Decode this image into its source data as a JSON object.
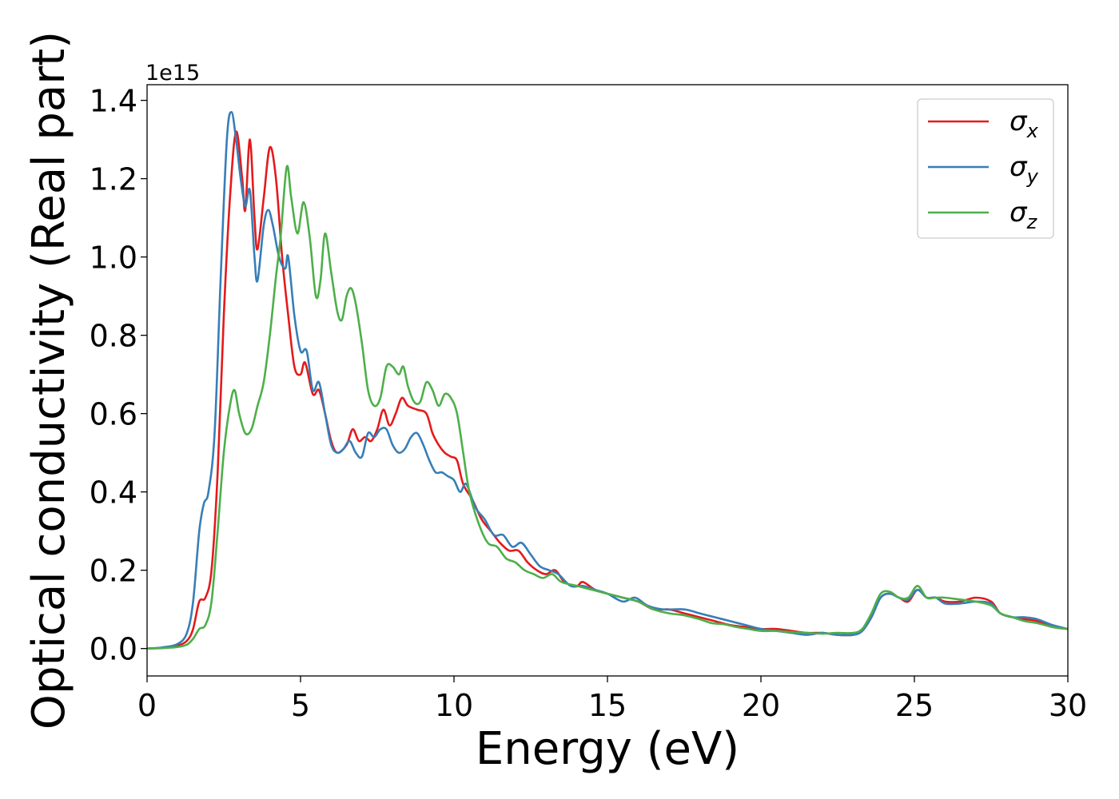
{
  "chart_data": {
    "type": "line",
    "xlabel": "Energy (eV)",
    "ylabel": "Optical conductivity (Real part)",
    "y_offset_text": "1e15",
    "xlim": [
      0,
      30
    ],
    "ylim": [
      -0.07,
      1.44
    ],
    "x_ticks": [
      0,
      5,
      10,
      15,
      20,
      25,
      30
    ],
    "x_tick_labels": [
      "0",
      "5",
      "10",
      "15",
      "20",
      "25",
      "30"
    ],
    "y_ticks": [
      0.0,
      0.2,
      0.4,
      0.6,
      0.8,
      1.0,
      1.2,
      1.4
    ],
    "y_tick_labels": [
      "0.0",
      "0.2",
      "0.4",
      "0.6",
      "0.8",
      "1.0",
      "1.2",
      "1.4"
    ],
    "grid": false,
    "legend_position": "top-right",
    "series": [
      {
        "name": "σx",
        "legend_symbol": "σ",
        "legend_subscript": "x",
        "color": "#e41a1c",
        "points": [
          [
            0,
            0
          ],
          [
            0.5,
            0.002
          ],
          [
            1.0,
            0.008
          ],
          [
            1.3,
            0.02
          ],
          [
            1.5,
            0.05
          ],
          [
            1.7,
            0.12
          ],
          [
            1.9,
            0.13
          ],
          [
            2.1,
            0.2
          ],
          [
            2.3,
            0.45
          ],
          [
            2.5,
            0.85
          ],
          [
            2.7,
            1.15
          ],
          [
            2.9,
            1.32
          ],
          [
            3.1,
            1.2
          ],
          [
            3.2,
            1.12
          ],
          [
            3.35,
            1.3
          ],
          [
            3.5,
            1.1
          ],
          [
            3.6,
            1.02
          ],
          [
            3.8,
            1.15
          ],
          [
            4.0,
            1.28
          ],
          [
            4.2,
            1.2
          ],
          [
            4.4,
            1.0
          ],
          [
            4.6,
            0.85
          ],
          [
            4.8,
            0.72
          ],
          [
            5.0,
            0.7
          ],
          [
            5.15,
            0.73
          ],
          [
            5.4,
            0.65
          ],
          [
            5.6,
            0.66
          ],
          [
            5.8,
            0.6
          ],
          [
            6.0,
            0.53
          ],
          [
            6.2,
            0.5
          ],
          [
            6.5,
            0.52
          ],
          [
            6.7,
            0.56
          ],
          [
            6.9,
            0.53
          ],
          [
            7.1,
            0.54
          ],
          [
            7.3,
            0.53
          ],
          [
            7.5,
            0.56
          ],
          [
            7.7,
            0.61
          ],
          [
            7.9,
            0.57
          ],
          [
            8.1,
            0.6
          ],
          [
            8.3,
            0.64
          ],
          [
            8.5,
            0.62
          ],
          [
            8.8,
            0.61
          ],
          [
            9.1,
            0.6
          ],
          [
            9.3,
            0.55
          ],
          [
            9.5,
            0.52
          ],
          [
            9.7,
            0.5
          ],
          [
            9.9,
            0.49
          ],
          [
            10.1,
            0.48
          ],
          [
            10.3,
            0.42
          ],
          [
            10.6,
            0.38
          ],
          [
            10.9,
            0.33
          ],
          [
            11.2,
            0.3
          ],
          [
            11.5,
            0.27
          ],
          [
            11.8,
            0.25
          ],
          [
            12.1,
            0.25
          ],
          [
            12.4,
            0.22
          ],
          [
            12.7,
            0.2
          ],
          [
            13.0,
            0.19
          ],
          [
            13.3,
            0.2
          ],
          [
            13.6,
            0.17
          ],
          [
            14.0,
            0.16
          ],
          [
            14.2,
            0.17
          ],
          [
            14.6,
            0.15
          ],
          [
            15.0,
            0.14
          ],
          [
            15.5,
            0.13
          ],
          [
            16.0,
            0.12
          ],
          [
            16.5,
            0.1
          ],
          [
            17.0,
            0.1
          ],
          [
            17.5,
            0.09
          ],
          [
            18.0,
            0.08
          ],
          [
            18.5,
            0.07
          ],
          [
            19.0,
            0.06
          ],
          [
            19.5,
            0.055
          ],
          [
            20.0,
            0.05
          ],
          [
            20.5,
            0.05
          ],
          [
            21.0,
            0.045
          ],
          [
            21.5,
            0.04
          ],
          [
            22.0,
            0.04
          ],
          [
            22.5,
            0.035
          ],
          [
            23.0,
            0.035
          ],
          [
            23.3,
            0.045
          ],
          [
            23.6,
            0.08
          ],
          [
            23.9,
            0.13
          ],
          [
            24.2,
            0.14
          ],
          [
            24.5,
            0.13
          ],
          [
            24.8,
            0.12
          ],
          [
            25.1,
            0.15
          ],
          [
            25.4,
            0.13
          ],
          [
            25.7,
            0.13
          ],
          [
            26.0,
            0.12
          ],
          [
            26.5,
            0.12
          ],
          [
            27.0,
            0.13
          ],
          [
            27.5,
            0.12
          ],
          [
            27.8,
            0.09
          ],
          [
            28.2,
            0.08
          ],
          [
            28.6,
            0.075
          ],
          [
            29.0,
            0.07
          ],
          [
            29.5,
            0.055
          ],
          [
            30.0,
            0.05
          ]
        ]
      },
      {
        "name": "σy",
        "legend_symbol": "σ",
        "legend_subscript": "y",
        "color": "#377eb8",
        "points": [
          [
            0,
            0
          ],
          [
            0.5,
            0.003
          ],
          [
            1.0,
            0.012
          ],
          [
            1.3,
            0.04
          ],
          [
            1.5,
            0.12
          ],
          [
            1.7,
            0.3
          ],
          [
            1.85,
            0.37
          ],
          [
            2.0,
            0.4
          ],
          [
            2.2,
            0.55
          ],
          [
            2.4,
            0.95
          ],
          [
            2.6,
            1.3
          ],
          [
            2.75,
            1.37
          ],
          [
            2.9,
            1.3
          ],
          [
            3.05,
            1.2
          ],
          [
            3.2,
            1.13
          ],
          [
            3.35,
            1.17
          ],
          [
            3.5,
            1.0
          ],
          [
            3.6,
            0.94
          ],
          [
            3.8,
            1.08
          ],
          [
            3.95,
            1.12
          ],
          [
            4.1,
            1.08
          ],
          [
            4.3,
            1.0
          ],
          [
            4.5,
            0.97
          ],
          [
            4.6,
            1.0
          ],
          [
            4.8,
            0.85
          ],
          [
            5.0,
            0.76
          ],
          [
            5.2,
            0.76
          ],
          [
            5.4,
            0.66
          ],
          [
            5.6,
            0.68
          ],
          [
            5.8,
            0.6
          ],
          [
            6.0,
            0.52
          ],
          [
            6.2,
            0.5
          ],
          [
            6.4,
            0.51
          ],
          [
            6.6,
            0.53
          ],
          [
            6.8,
            0.5
          ],
          [
            7.0,
            0.49
          ],
          [
            7.2,
            0.55
          ],
          [
            7.4,
            0.54
          ],
          [
            7.6,
            0.56
          ],
          [
            7.8,
            0.56
          ],
          [
            8.0,
            0.52
          ],
          [
            8.2,
            0.5
          ],
          [
            8.4,
            0.51
          ],
          [
            8.6,
            0.54
          ],
          [
            8.8,
            0.55
          ],
          [
            9.0,
            0.52
          ],
          [
            9.2,
            0.48
          ],
          [
            9.4,
            0.45
          ],
          [
            9.6,
            0.45
          ],
          [
            9.8,
            0.44
          ],
          [
            10.0,
            0.43
          ],
          [
            10.2,
            0.4
          ],
          [
            10.4,
            0.42
          ],
          [
            10.7,
            0.36
          ],
          [
            11.0,
            0.33
          ],
          [
            11.3,
            0.29
          ],
          [
            11.6,
            0.29
          ],
          [
            11.9,
            0.26
          ],
          [
            12.2,
            0.27
          ],
          [
            12.5,
            0.24
          ],
          [
            12.8,
            0.21
          ],
          [
            13.1,
            0.2
          ],
          [
            13.4,
            0.19
          ],
          [
            13.8,
            0.16
          ],
          [
            14.2,
            0.16
          ],
          [
            14.6,
            0.15
          ],
          [
            15.0,
            0.14
          ],
          [
            15.5,
            0.12
          ],
          [
            15.9,
            0.13
          ],
          [
            16.3,
            0.11
          ],
          [
            16.8,
            0.1
          ],
          [
            17.5,
            0.1
          ],
          [
            18.0,
            0.09
          ],
          [
            18.5,
            0.08
          ],
          [
            19.0,
            0.07
          ],
          [
            19.5,
            0.06
          ],
          [
            20.0,
            0.05
          ],
          [
            20.5,
            0.045
          ],
          [
            21.0,
            0.04
          ],
          [
            21.5,
            0.035
          ],
          [
            22.0,
            0.04
          ],
          [
            22.5,
            0.035
          ],
          [
            23.0,
            0.035
          ],
          [
            23.3,
            0.045
          ],
          [
            23.6,
            0.08
          ],
          [
            23.9,
            0.13
          ],
          [
            24.2,
            0.14
          ],
          [
            24.5,
            0.13
          ],
          [
            24.8,
            0.125
          ],
          [
            25.1,
            0.15
          ],
          [
            25.4,
            0.13
          ],
          [
            25.7,
            0.13
          ],
          [
            26.0,
            0.115
          ],
          [
            26.5,
            0.115
          ],
          [
            27.0,
            0.12
          ],
          [
            27.5,
            0.115
          ],
          [
            27.8,
            0.09
          ],
          [
            28.2,
            0.08
          ],
          [
            28.6,
            0.08
          ],
          [
            29.0,
            0.075
          ],
          [
            29.5,
            0.06
          ],
          [
            30.0,
            0.05
          ]
        ]
      },
      {
        "name": "σz",
        "legend_symbol": "σ",
        "legend_subscript": "z",
        "color": "#4daf4a",
        "points": [
          [
            0,
            0
          ],
          [
            0.5,
            0.001
          ],
          [
            1.0,
            0.004
          ],
          [
            1.3,
            0.01
          ],
          [
            1.5,
            0.025
          ],
          [
            1.7,
            0.05
          ],
          [
            1.9,
            0.06
          ],
          [
            2.1,
            0.12
          ],
          [
            2.3,
            0.3
          ],
          [
            2.5,
            0.5
          ],
          [
            2.7,
            0.62
          ],
          [
            2.85,
            0.66
          ],
          [
            3.0,
            0.6
          ],
          [
            3.2,
            0.55
          ],
          [
            3.4,
            0.56
          ],
          [
            3.6,
            0.62
          ],
          [
            3.8,
            0.68
          ],
          [
            4.0,
            0.8
          ],
          [
            4.2,
            0.95
          ],
          [
            4.35,
            1.05
          ],
          [
            4.55,
            1.23
          ],
          [
            4.7,
            1.15
          ],
          [
            4.9,
            1.06
          ],
          [
            5.1,
            1.14
          ],
          [
            5.3,
            1.05
          ],
          [
            5.5,
            0.9
          ],
          [
            5.65,
            0.94
          ],
          [
            5.8,
            1.06
          ],
          [
            6.0,
            0.96
          ],
          [
            6.2,
            0.86
          ],
          [
            6.35,
            0.84
          ],
          [
            6.5,
            0.9
          ],
          [
            6.65,
            0.92
          ],
          [
            6.8,
            0.88
          ],
          [
            7.0,
            0.78
          ],
          [
            7.2,
            0.66
          ],
          [
            7.4,
            0.62
          ],
          [
            7.6,
            0.64
          ],
          [
            7.8,
            0.72
          ],
          [
            8.0,
            0.72
          ],
          [
            8.2,
            0.7
          ],
          [
            8.35,
            0.72
          ],
          [
            8.5,
            0.67
          ],
          [
            8.7,
            0.63
          ],
          [
            8.9,
            0.63
          ],
          [
            9.1,
            0.68
          ],
          [
            9.3,
            0.66
          ],
          [
            9.5,
            0.62
          ],
          [
            9.7,
            0.65
          ],
          [
            9.9,
            0.64
          ],
          [
            10.1,
            0.6
          ],
          [
            10.3,
            0.5
          ],
          [
            10.5,
            0.4
          ],
          [
            10.8,
            0.32
          ],
          [
            11.1,
            0.27
          ],
          [
            11.4,
            0.26
          ],
          [
            11.7,
            0.23
          ],
          [
            12.0,
            0.22
          ],
          [
            12.3,
            0.2
          ],
          [
            12.6,
            0.19
          ],
          [
            12.9,
            0.18
          ],
          [
            13.2,
            0.19
          ],
          [
            13.5,
            0.17
          ],
          [
            14.0,
            0.16
          ],
          [
            14.5,
            0.15
          ],
          [
            15.0,
            0.14
          ],
          [
            15.5,
            0.13
          ],
          [
            16.0,
            0.12
          ],
          [
            16.5,
            0.1
          ],
          [
            17.0,
            0.09
          ],
          [
            17.5,
            0.085
          ],
          [
            18.0,
            0.075
          ],
          [
            18.4,
            0.065
          ],
          [
            18.8,
            0.062
          ],
          [
            19.2,
            0.055
          ],
          [
            19.6,
            0.05
          ],
          [
            20.0,
            0.045
          ],
          [
            20.5,
            0.045
          ],
          [
            21.0,
            0.042
          ],
          [
            21.5,
            0.04
          ],
          [
            22.0,
            0.038
          ],
          [
            22.5,
            0.04
          ],
          [
            23.0,
            0.04
          ],
          [
            23.3,
            0.05
          ],
          [
            23.6,
            0.09
          ],
          [
            23.9,
            0.14
          ],
          [
            24.2,
            0.145
          ],
          [
            24.5,
            0.13
          ],
          [
            24.8,
            0.13
          ],
          [
            25.1,
            0.16
          ],
          [
            25.4,
            0.13
          ],
          [
            25.7,
            0.13
          ],
          [
            26.0,
            0.13
          ],
          [
            26.5,
            0.125
          ],
          [
            27.0,
            0.12
          ],
          [
            27.5,
            0.11
          ],
          [
            27.8,
            0.09
          ],
          [
            28.2,
            0.08
          ],
          [
            28.6,
            0.07
          ],
          [
            29.0,
            0.065
          ],
          [
            29.5,
            0.055
          ],
          [
            30.0,
            0.05
          ]
        ]
      }
    ]
  }
}
